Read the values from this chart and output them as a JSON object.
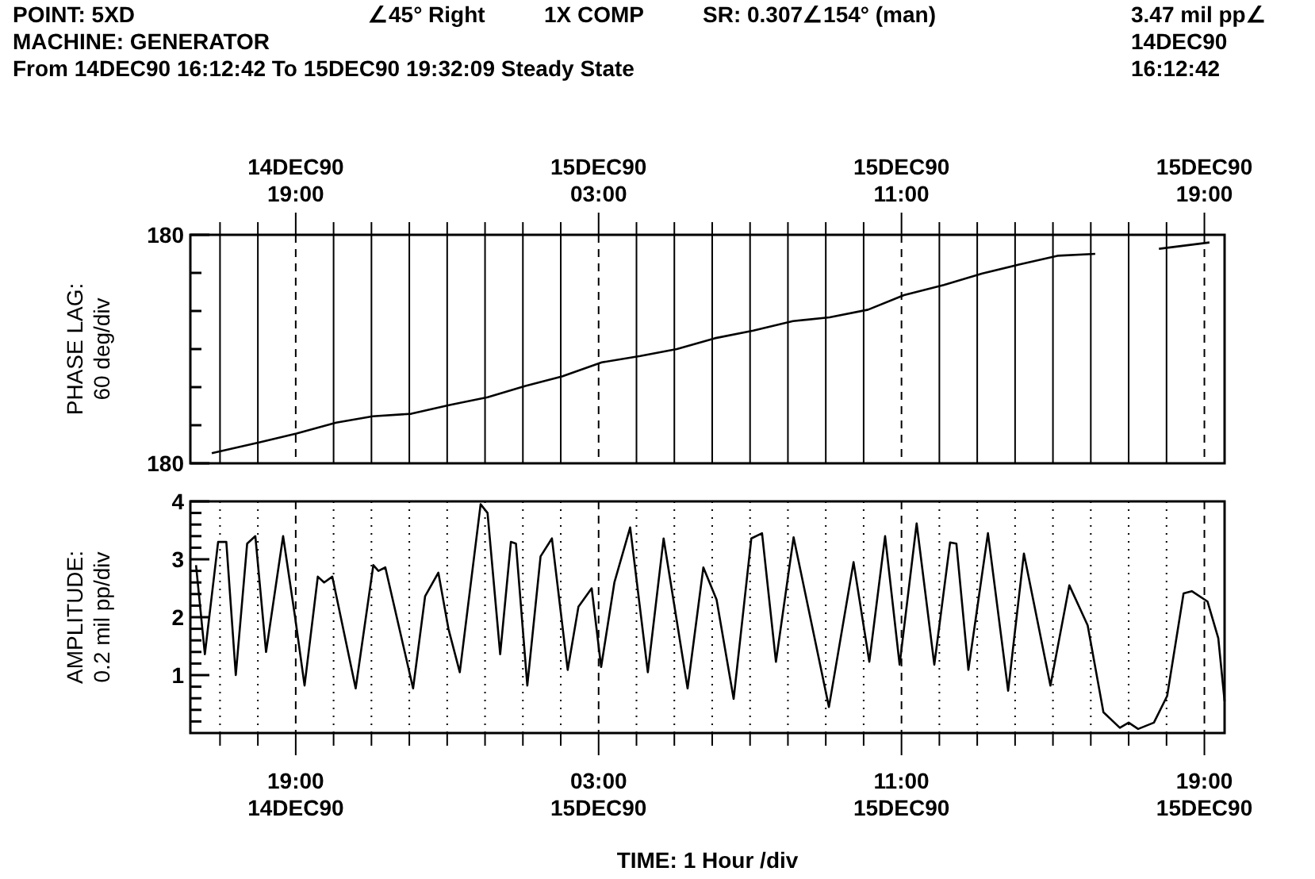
{
  "chart_data": [
    {
      "type": "line",
      "title": "POINT: 5XD",
      "ylabel": "PHASE LAG: 60 deg/div",
      "annotations": [
        "∠45° Right",
        "1X COMP",
        "SR: 0.307∠154° (man)",
        "3.47 mil pp∠",
        "MACHINE: GENERATOR",
        "14DEC90",
        "From 14DEC90 16:12:42 To 15DEC90 19:32:09 Steady State",
        "16:12:42"
      ],
      "xlim": [
        "1990-12-14T16:13",
        "1990-12-15T19:32"
      ],
      "x2lim": [
        "1990-12-14T16:13",
        "1990-12-15T19:32"
      ],
      "x2ticks": [
        {
          "value": "1990-12-14T17:00",
          "label": null
        },
        {
          "value": "1990-12-14T18:00",
          "label": null
        },
        {
          "value": "1990-12-14T19:00",
          "label": "14DEC90 19:00"
        },
        {
          "value": "1990-12-14T20:00",
          "label": null
        },
        {
          "value": "1990-12-14T21:00",
          "label": null
        },
        {
          "value": "1990-12-14T22:00",
          "label": null
        },
        {
          "value": "1990-12-14T23:00",
          "label": null
        },
        {
          "value": "1990-12-15T00:00",
          "label": null
        },
        {
          "value": "1990-12-15T01:00",
          "label": null
        },
        {
          "value": "1990-12-15T02:00",
          "label": null
        },
        {
          "value": "1990-12-15T03:00",
          "label": "15DEC90 03:00"
        },
        {
          "value": "1990-12-15T04:00",
          "label": null
        },
        {
          "value": "1990-12-15T05:00",
          "label": null
        },
        {
          "value": "1990-12-15T06:00",
          "label": null
        },
        {
          "value": "1990-12-15T07:00",
          "label": null
        },
        {
          "value": "1990-12-15T08:00",
          "label": null
        },
        {
          "value": "1990-12-15T09:00",
          "label": null
        },
        {
          "value": "1990-12-15T10:00",
          "label": null
        },
        {
          "value": "1990-12-15T11:00",
          "label": "15DEC90 11:00"
        },
        {
          "value": "1990-12-15T12:00",
          "label": null
        },
        {
          "value": "1990-12-15T13:00",
          "label": null
        },
        {
          "value": "1990-12-15T14:00",
          "label": null
        },
        {
          "value": "1990-12-15T15:00",
          "label": null
        },
        {
          "value": "1990-12-15T16:00",
          "label": null
        },
        {
          "value": "1990-12-15T17:00",
          "label": null
        },
        {
          "value": "1990-12-15T18:00",
          "label": null
        },
        {
          "value": "1990-12-15T19:00",
          "label": "15DEC90 19:00"
        }
      ],
      "tick_labels": "y",
      "ylim": [
        -180,
        180
      ],
      "yticks": [
        {
          "value": -180,
          "label": "180"
        },
        {
          "value": -120,
          "label": null
        },
        {
          "value": -60,
          "label": null
        },
        {
          "value": 0,
          "label": null
        },
        {
          "value": 60,
          "label": null
        },
        {
          "value": 120,
          "label": null
        },
        {
          "value": 180,
          "label": "180"
        }
      ],
      "grid": "x",
      "series": [
        {
          "color": "#000000",
          "x": [
            "1990-12-14T16:47",
            "1990-12-14T18:03",
            "1990-12-14T19:01",
            "1990-12-14T20:04",
            "1990-12-14T21:02",
            "1990-12-14T22:03",
            "1990-12-14T23:04",
            "1990-12-15T00:04",
            "1990-12-15T01:04",
            "1990-12-15T02:02",
            "1990-12-15T03:05",
            "1990-12-15T04:06",
            "1990-12-15T05:04",
            "1990-12-15T06:04",
            "1990-12-15T07:05",
            "1990-12-15T08:08",
            "1990-12-15T09:06",
            "1990-12-15T10:07",
            "1990-12-15T11:04",
            "1990-12-15T12:07",
            "1990-12-15T13:08",
            "1990-12-15T14:06",
            "1990-12-15T15:07",
            "1990-12-15T16:07",
            "1990-12-15T17:00",
            "1990-12-15T17:48",
            "1990-12-15T19:08"
          ],
          "values": [
            -164,
            -147,
            -133,
            -116,
            -106,
            -102,
            -88,
            -76,
            -58,
            -43,
            -21,
            -11,
            0,
            17,
            29,
            44,
            50,
            62,
            85,
            101,
            119,
            133,
            147,
            150,
            null,
            158,
            168
          ]
        }
      ]
    },
    {
      "type": "line",
      "ylabel": "AMPLITUDE: 0.2 mil pp/div",
      "xlabel": "TIME: 1 Hour /div",
      "xlim": [
        "1990-12-14T16:13",
        "1990-12-15T19:32"
      ],
      "xticks": [
        {
          "value": "1990-12-14T17:00",
          "label": null
        },
        {
          "value": "1990-12-14T18:00",
          "label": null
        },
        {
          "value": "1990-12-14T19:00",
          "label": "19:00 14DEC90"
        },
        {
          "value": "1990-12-14T20:00",
          "label": null
        },
        {
          "value": "1990-12-14T21:00",
          "label": null
        },
        {
          "value": "1990-12-14T22:00",
          "label": null
        },
        {
          "value": "1990-12-14T23:00",
          "label": null
        },
        {
          "value": "1990-12-15T00:00",
          "label": null
        },
        {
          "value": "1990-12-15T01:00",
          "label": null
        },
        {
          "value": "1990-12-15T02:00",
          "label": null
        },
        {
          "value": "1990-12-15T03:00",
          "label": "03:00 15DEC90"
        },
        {
          "value": "1990-12-15T04:00",
          "label": null
        },
        {
          "value": "1990-12-15T05:00",
          "label": null
        },
        {
          "value": "1990-12-15T06:00",
          "label": null
        },
        {
          "value": "1990-12-15T07:00",
          "label": null
        },
        {
          "value": "1990-12-15T08:00",
          "label": null
        },
        {
          "value": "1990-12-15T09:00",
          "label": null
        },
        {
          "value": "1990-12-15T10:00",
          "label": null
        },
        {
          "value": "1990-12-15T11:00",
          "label": "11:00 15DEC90"
        },
        {
          "value": "1990-12-15T12:00",
          "label": null
        },
        {
          "value": "1990-12-15T13:00",
          "label": null
        },
        {
          "value": "1990-12-15T14:00",
          "label": null
        },
        {
          "value": "1990-12-15T15:00",
          "label": null
        },
        {
          "value": "1990-12-15T16:00",
          "label": null
        },
        {
          "value": "1990-12-15T17:00",
          "label": null
        },
        {
          "value": "1990-12-15T18:00",
          "label": null
        },
        {
          "value": "1990-12-15T19:00",
          "label": "19:00 15DEC90"
        }
      ],
      "ylim": [
        0,
        4
      ],
      "yticks": [
        {
          "value": 0.2,
          "label": null
        },
        {
          "value": 0.4,
          "label": null
        },
        {
          "value": 0.6,
          "label": null
        },
        {
          "value": 0.8,
          "label": null
        },
        1,
        {
          "value": 1.2,
          "label": null
        },
        {
          "value": 1.4,
          "label": null
        },
        {
          "value": 1.6,
          "label": null
        },
        {
          "value": 1.8,
          "label": null
        },
        2,
        {
          "value": 2.2,
          "label": null
        },
        {
          "value": 2.4,
          "label": null
        },
        {
          "value": 2.6,
          "label": null
        },
        {
          "value": 2.8,
          "label": null
        },
        3,
        {
          "value": 3.2,
          "label": null
        },
        {
          "value": 3.4,
          "label": null
        },
        {
          "value": 3.6,
          "label": null
        },
        {
          "value": 3.8,
          "label": null
        },
        4
      ],
      "grid": "x",
      "series": [
        {
          "color": "#000000",
          "x": [
            "1990-12-14T16:22",
            "1990-12-14T16:36",
            "1990-12-14T16:57",
            "1990-12-14T17:10",
            "1990-12-14T17:25",
            "1990-12-14T17:43",
            "1990-12-14T17:56",
            "1990-12-14T18:13",
            "1990-12-14T18:40",
            "1990-12-14T18:59",
            "1990-12-14T19:14",
            "1990-12-14T19:35",
            "1990-12-14T19:45",
            "1990-12-14T19:58",
            "1990-12-14T20:35",
            "1990-12-14T21:03",
            "1990-12-14T21:11",
            "1990-12-14T21:22",
            "1990-12-14T22:06",
            "1990-12-14T22:25",
            "1990-12-14T22:46",
            "1990-12-14T23:02",
            "1990-12-14T23:20",
            "1990-12-14T23:53",
            "1990-12-15T00:04",
            "1990-12-15T00:24",
            "1990-12-15T00:41",
            "1990-12-15T00:49",
            "1990-12-15T01:07",
            "1990-12-15T01:28",
            "1990-12-15T01:46",
            "1990-12-15T02:11",
            "1990-12-15T02:28",
            "1990-12-15T02:49",
            "1990-12-15T03:04",
            "1990-12-15T03:25",
            "1990-12-15T03:50",
            "1990-12-15T04:18",
            "1990-12-15T04:43",
            "1990-12-15T05:21",
            "1990-12-15T05:46",
            "1990-12-15T06:07",
            "1990-12-15T06:34",
            "1990-12-15T07:02",
            "1990-12-15T07:19",
            "1990-12-15T07:41",
            "1990-12-15T08:09",
            "1990-12-15T09:05",
            "1990-12-15T09:44",
            "1990-12-15T10:09",
            "1990-12-15T10:34",
            "1990-12-15T10:57",
            "1990-12-15T11:24",
            "1990-12-15T11:52",
            "1990-12-15T12:17",
            "1990-12-15T12:27",
            "1990-12-15T12:46",
            "1990-12-15T13:17",
            "1990-12-15T13:49",
            "1990-12-15T14:14",
            "1990-12-15T14:56",
            "1990-12-15T15:26",
            "1990-12-15T15:55",
            "1990-12-15T16:20",
            "1990-12-15T16:46",
            "1990-12-15T17:00",
            "1990-12-15T17:15",
            "1990-12-15T17:40",
            "1990-12-15T18:01",
            "1990-12-15T18:27",
            "1990-12-15T18:40",
            "1990-12-15T19:05",
            "1990-12-15T19:22",
            "1990-12-15T19:32"
          ],
          "values": [
            2.9,
            1.36,
            3.3,
            3.3,
            1.0,
            3.27,
            3.4,
            1.4,
            3.4,
            2.0,
            0.82,
            2.7,
            2.6,
            2.7,
            0.77,
            2.9,
            2.8,
            2.86,
            0.77,
            2.36,
            2.77,
            1.8,
            1.05,
            3.95,
            3.8,
            1.36,
            3.3,
            3.27,
            0.82,
            3.05,
            3.36,
            1.09,
            2.18,
            2.5,
            1.14,
            2.6,
            3.55,
            1.05,
            3.36,
            0.77,
            2.86,
            2.3,
            0.59,
            3.36,
            3.45,
            1.23,
            3.38,
            0.45,
            2.95,
            1.23,
            3.4,
            1.18,
            3.62,
            1.18,
            3.29,
            3.27,
            1.09,
            3.45,
            0.73,
            3.1,
            0.82,
            2.55,
            1.86,
            0.36,
            0.09,
            0.18,
            0.07,
            0.18,
            0.64,
            2.41,
            2.45,
            2.27,
            1.64,
            0.55
          ]
        }
      ]
    }
  ]
}
